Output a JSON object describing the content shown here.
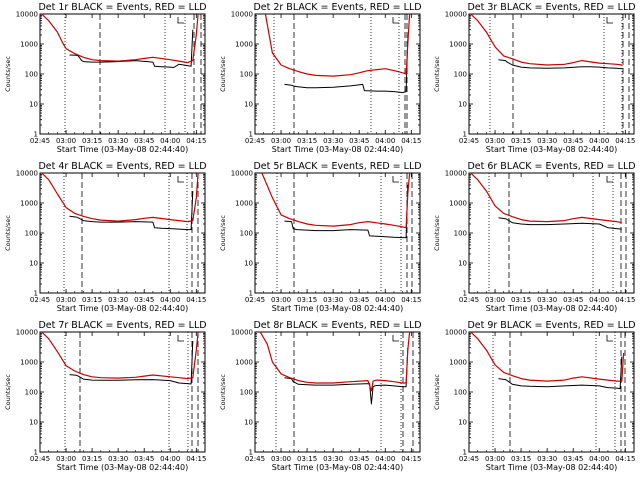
{
  "chart_data": [
    {
      "type": "line",
      "title": "Det 1r BLACK = Events, RED = LLD",
      "xlabel": "Start Time (03-May-08 02:44:40)",
      "ylabel": "Counts/sec",
      "yscale": "log",
      "ylim": [
        1,
        10000
      ],
      "xlim": [
        "02:45",
        "04:20"
      ],
      "xticks": [
        "02:45",
        "03:00",
        "03:15",
        "03:30",
        "03:45",
        "04:00",
        "04:15"
      ],
      "yticks": [
        "1",
        "10",
        "100",
        "1000",
        "10000"
      ],
      "series": [
        {
          "color": "#000000",
          "x": [
            "03:02",
            "03:06",
            "03:07",
            "03:09",
            "03:10",
            "03:15",
            "03:20",
            "03:30",
            "03:40",
            "03:50",
            "03:51",
            "03:55",
            "04:00",
            "04:02",
            "04:05",
            "04:10",
            "04:12",
            "04:13"
          ],
          "y": [
            430,
            420,
            400,
            280,
            260,
            250,
            250,
            260,
            280,
            250,
            180,
            175,
            170,
            165,
            210,
            190,
            180,
            3000
          ]
        },
        {
          "color": "#cc0000",
          "x": [
            "02:46",
            "02:50",
            "02:55",
            "02:58",
            "03:00",
            "03:02",
            "03:05",
            "03:10",
            "03:15",
            "03:20",
            "03:30",
            "03:40",
            "03:45",
            "03:50",
            "04:00",
            "04:05",
            "04:10",
            "04:13",
            "04:15",
            "04:16"
          ],
          "y": [
            10000,
            6000,
            2500,
            1100,
            700,
            600,
            480,
            360,
            300,
            280,
            270,
            300,
            330,
            360,
            300,
            270,
            240,
            280,
            2000,
            10000
          ]
        }
      ]
    },
    {
      "type": "line",
      "title": "Det 2r BLACK = Events, RED = LLD",
      "xlabel": "Start Time (03-May-08 02:44:40)",
      "ylabel": "Counts/sec",
      "yscale": "log",
      "ylim": [
        1,
        10000
      ],
      "xlim": [
        "02:45",
        "04:20"
      ],
      "xticks": [
        "02:45",
        "03:00",
        "03:15",
        "03:30",
        "03:45",
        "04:00",
        "04:15"
      ],
      "yticks": [
        "1",
        "10",
        "100",
        "1000",
        "10000"
      ],
      "series": [
        {
          "color": "#000000",
          "x": [
            "03:02",
            "03:06",
            "03:07",
            "03:09",
            "03:15",
            "03:20",
            "03:30",
            "03:40",
            "03:47",
            "03:48",
            "03:55",
            "04:00",
            "04:05",
            "04:08",
            "04:10",
            "04:12",
            "04:13"
          ],
          "y": [
            45,
            42,
            40,
            38,
            35,
            35,
            36,
            40,
            45,
            28,
            27,
            27,
            26,
            25,
            24,
            26,
            1500
          ]
        },
        {
          "color": "#cc0000",
          "x": [
            "02:51",
            "02:55",
            "03:00",
            "03:05",
            "03:10",
            "03:15",
            "03:20",
            "03:30",
            "03:40",
            "03:45",
            "03:50",
            "04:00",
            "04:05",
            "04:10",
            "04:12",
            "04:13",
            "04:14"
          ],
          "y": [
            10000,
            500,
            200,
            150,
            120,
            100,
            90,
            85,
            95,
            110,
            130,
            150,
            130,
            110,
            100,
            1000,
            10000
          ]
        }
      ]
    },
    {
      "type": "line",
      "title": "Det 3r BLACK = Events, RED = LLD",
      "xlabel": "Start Time (03-May-08 02:44:40)",
      "ylabel": "Counts/sec",
      "yscale": "log",
      "ylim": [
        1,
        10000
      ],
      "xlim": [
        "02:45",
        "04:20"
      ],
      "xticks": [
        "02:45",
        "03:00",
        "03:15",
        "03:30",
        "03:45",
        "04:00",
        "04:15"
      ],
      "yticks": [
        "1",
        "10",
        "100",
        "1000",
        "10000"
      ],
      "series": [
        {
          "color": "#000000",
          "x": [
            "03:02",
            "03:06",
            "03:07",
            "03:10",
            "03:15",
            "03:20",
            "03:30",
            "03:40",
            "03:50",
            "03:55",
            "04:00",
            "04:05",
            "04:10",
            "04:13"
          ],
          "y": [
            300,
            280,
            250,
            200,
            170,
            160,
            155,
            160,
            175,
            175,
            170,
            160,
            155,
            150
          ]
        },
        {
          "color": "#cc0000",
          "x": [
            "02:46",
            "02:50",
            "02:55",
            "03:00",
            "03:05",
            "03:10",
            "03:15",
            "03:20",
            "03:30",
            "03:40",
            "03:45",
            "03:50",
            "04:00",
            "04:05",
            "04:10",
            "04:13"
          ],
          "y": [
            10000,
            6000,
            2500,
            800,
            400,
            320,
            250,
            220,
            200,
            210,
            240,
            280,
            230,
            220,
            210,
            200
          ]
        }
      ]
    },
    {
      "type": "line",
      "title": "Det 4r BLACK = Events, RED = LLD",
      "xlabel": "Start Time (03-May-08 02:44:40)",
      "ylabel": "Counts/sec",
      "yscale": "log",
      "ylim": [
        1,
        10000
      ],
      "xlim": [
        "02:45",
        "04:20"
      ],
      "xticks": [
        "02:45",
        "03:00",
        "03:15",
        "03:30",
        "03:45",
        "04:00",
        "04:15"
      ],
      "yticks": [
        "1",
        "10",
        "100",
        "1000",
        "10000"
      ],
      "series": [
        {
          "color": "#000000",
          "x": [
            "03:02",
            "03:06",
            "03:07",
            "03:10",
            "03:15",
            "03:20",
            "03:30",
            "03:40",
            "03:50",
            "03:51",
            "03:55",
            "04:00",
            "04:05",
            "04:10",
            "04:12",
            "04:13"
          ],
          "y": [
            360,
            340,
            320,
            260,
            240,
            230,
            230,
            240,
            230,
            150,
            145,
            140,
            135,
            130,
            130,
            2500
          ]
        },
        {
          "color": "#cc0000",
          "x": [
            "02:46",
            "02:50",
            "02:55",
            "03:00",
            "03:05",
            "03:10",
            "03:15",
            "03:20",
            "03:30",
            "03:40",
            "03:45",
            "03:50",
            "04:00",
            "04:05",
            "04:10",
            "04:13",
            "04:15",
            "04:16"
          ],
          "y": [
            10000,
            6000,
            2000,
            700,
            450,
            360,
            300,
            270,
            250,
            280,
            310,
            330,
            280,
            260,
            240,
            260,
            1500,
            10000
          ]
        }
      ]
    },
    {
      "type": "line",
      "title": "Det 5r BLACK = Events, RED = LLD",
      "xlabel": "Start Time (03-May-08 02:44:40)",
      "ylabel": "Counts/sec",
      "yscale": "log",
      "ylim": [
        1,
        10000
      ],
      "xlim": [
        "02:45",
        "04:20"
      ],
      "xticks": [
        "02:45",
        "03:00",
        "03:15",
        "03:30",
        "03:45",
        "04:00",
        "04:15"
      ],
      "yticks": [
        "1",
        "10",
        "100",
        "1000",
        "10000"
      ],
      "series": [
        {
          "color": "#000000",
          "x": [
            "03:02",
            "03:06",
            "03:07",
            "03:09",
            "03:15",
            "03:20",
            "03:30",
            "03:40",
            "03:50",
            "03:51",
            "03:55",
            "04:00",
            "04:05",
            "04:10",
            "04:12",
            "04:13"
          ],
          "y": [
            250,
            240,
            140,
            130,
            125,
            120,
            120,
            130,
            125,
            80,
            78,
            75,
            72,
            70,
            70,
            4000
          ]
        },
        {
          "color": "#cc0000",
          "x": [
            "02:49",
            "02:55",
            "03:00",
            "03:05",
            "03:10",
            "03:15",
            "03:20",
            "03:30",
            "03:40",
            "03:45",
            "03:50",
            "04:00",
            "04:05",
            "04:10",
            "04:12",
            "04:13",
            "04:14"
          ],
          "y": [
            10000,
            1500,
            400,
            300,
            240,
            200,
            180,
            170,
            190,
            220,
            240,
            200,
            180,
            160,
            150,
            2000,
            10000
          ]
        }
      ]
    },
    {
      "type": "line",
      "title": "Det 6r BLACK = Events, RED = LLD",
      "xlabel": "Start Time (03-May-08 02:44:40)",
      "ylabel": "Counts/sec",
      "yscale": "log",
      "ylim": [
        1,
        10000
      ],
      "xlim": [
        "02:45",
        "04:20"
      ],
      "xticks": [
        "02:45",
        "03:00",
        "03:15",
        "03:30",
        "03:45",
        "04:00",
        "04:15"
      ],
      "yticks": [
        "1",
        "10",
        "100",
        "1000",
        "10000"
      ],
      "series": [
        {
          "color": "#000000",
          "x": [
            "03:02",
            "03:06",
            "03:07",
            "03:10",
            "03:15",
            "03:20",
            "03:30",
            "03:40",
            "03:50",
            "03:55",
            "04:00",
            "04:05",
            "04:10",
            "04:13"
          ],
          "y": [
            320,
            300,
            280,
            220,
            200,
            190,
            190,
            200,
            210,
            205,
            200,
            150,
            140,
            135
          ]
        },
        {
          "color": "#cc0000",
          "x": [
            "02:46",
            "02:50",
            "02:55",
            "03:00",
            "03:05",
            "03:10",
            "03:15",
            "03:20",
            "03:30",
            "03:40",
            "03:45",
            "03:50",
            "04:00",
            "04:05",
            "04:10",
            "04:13"
          ],
          "y": [
            10000,
            6000,
            2500,
            800,
            450,
            350,
            280,
            250,
            240,
            260,
            300,
            330,
            280,
            260,
            240,
            220
          ]
        }
      ]
    },
    {
      "type": "line",
      "title": "Det 7r BLACK = Events, RED = LLD",
      "xlabel": "Start Time (03-May-08 02:44:40)",
      "ylabel": "Counts/sec",
      "yscale": "log",
      "ylim": [
        1,
        10000
      ],
      "xlim": [
        "02:45",
        "04:20"
      ],
      "xticks": [
        "02:45",
        "03:00",
        "03:15",
        "03:30",
        "03:45",
        "04:00",
        "04:15"
      ],
      "yticks": [
        "1",
        "10",
        "100",
        "1000",
        "10000"
      ],
      "series": [
        {
          "color": "#000000",
          "x": [
            "03:02",
            "03:06",
            "03:07",
            "03:10",
            "03:15",
            "03:20",
            "03:30",
            "03:40",
            "03:50",
            "03:55",
            "04:00",
            "04:05",
            "04:10",
            "04:12",
            "04:13"
          ],
          "y": [
            380,
            360,
            340,
            270,
            250,
            245,
            245,
            255,
            260,
            250,
            240,
            200,
            190,
            185,
            5000
          ]
        },
        {
          "color": "#cc0000",
          "x": [
            "02:46",
            "02:50",
            "02:55",
            "03:00",
            "03:05",
            "03:10",
            "03:15",
            "03:20",
            "03:30",
            "03:40",
            "03:45",
            "03:50",
            "04:00",
            "04:05",
            "04:10",
            "04:13",
            "04:15",
            "04:16"
          ],
          "y": [
            10000,
            6000,
            2200,
            750,
            500,
            380,
            320,
            300,
            290,
            310,
            340,
            370,
            320,
            300,
            280,
            300,
            2500,
            10000
          ]
        }
      ]
    },
    {
      "type": "line",
      "title": "Det 8r BLACK = Events, RED = LLD",
      "xlabel": "Start Time (03-May-08 02:44:40)",
      "ylabel": "Counts/sec",
      "yscale": "log",
      "ylim": [
        1,
        10000
      ],
      "xlim": [
        "02:45",
        "04:20"
      ],
      "xticks": [
        "02:45",
        "03:00",
        "03:15",
        "03:30",
        "03:45",
        "04:00",
        "04:15"
      ],
      "yticks": [
        "1",
        "10",
        "100",
        "1000",
        "10000"
      ],
      "series": [
        {
          "color": "#000000",
          "x": [
            "03:02",
            "03:06",
            "03:07",
            "03:10",
            "03:15",
            "03:20",
            "03:30",
            "03:40",
            "03:51",
            "03:52",
            "03:53",
            "03:54",
            "03:55",
            "04:00",
            "04:05",
            "04:10",
            "04:12",
            "04:13"
          ],
          "y": [
            300,
            280,
            220,
            180,
            175,
            170,
            170,
            180,
            190,
            40,
            150,
            160,
            165,
            170,
            160,
            150,
            150,
            3000
          ]
        },
        {
          "color": "#cc0000",
          "x": [
            "02:48",
            "02:52",
            "02:55",
            "03:00",
            "03:05",
            "03:10",
            "03:15",
            "03:20",
            "03:30",
            "03:40",
            "03:50",
            "03:52",
            "03:53",
            "03:55",
            "04:00",
            "04:05",
            "04:10",
            "04:12",
            "04:13",
            "04:14"
          ],
          "y": [
            10000,
            4000,
            1000,
            400,
            300,
            240,
            210,
            200,
            200,
            220,
            240,
            110,
            230,
            250,
            240,
            220,
            200,
            200,
            2500,
            10000
          ]
        }
      ]
    },
    {
      "type": "line",
      "title": "Det 9r BLACK = Events, RED = LLD",
      "xlabel": "Start Time (03-May-08 02:44:40)",
      "ylabel": "Counts/sec",
      "yscale": "log",
      "ylim": [
        1,
        10000
      ],
      "xlim": [
        "02:45",
        "04:20"
      ],
      "xticks": [
        "02:45",
        "03:00",
        "03:15",
        "03:30",
        "03:45",
        "04:00",
        "04:15"
      ],
      "yticks": [
        "1",
        "10",
        "100",
        "1000",
        "10000"
      ],
      "series": [
        {
          "color": "#000000",
          "x": [
            "03:02",
            "03:06",
            "03:07",
            "03:10",
            "03:15",
            "03:20",
            "03:30",
            "03:40",
            "03:50",
            "03:55",
            "04:00",
            "04:05",
            "04:10",
            "04:12",
            "04:13"
          ],
          "y": [
            280,
            260,
            240,
            180,
            160,
            155,
            150,
            160,
            170,
            165,
            160,
            140,
            135,
            130,
            1500
          ]
        },
        {
          "color": "#cc0000",
          "x": [
            "02:46",
            "02:50",
            "02:55",
            "03:00",
            "03:05",
            "03:10",
            "03:15",
            "03:20",
            "03:30",
            "03:40",
            "03:45",
            "03:50",
            "04:00",
            "04:05",
            "04:10",
            "04:13",
            "04:14"
          ],
          "y": [
            10000,
            6000,
            2500,
            800,
            450,
            350,
            280,
            250,
            230,
            250,
            290,
            320,
            270,
            250,
            230,
            230,
            2000
          ]
        }
      ]
    }
  ]
}
